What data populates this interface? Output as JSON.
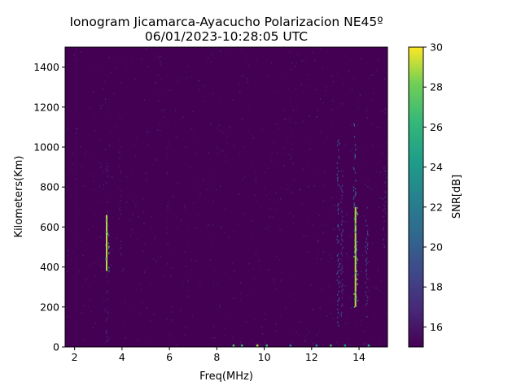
{
  "chart_data": {
    "type": "heatmap",
    "title_line1": "Ionogram Jicamarca-Ayacucho Polarizacion NE45º",
    "title_line2": "06/01/2023-10:28:05 UTC",
    "xlabel": "Freq(MHz)",
    "ylabel": "Kilometers(Km)",
    "xlim": [
      1.6,
      15.2
    ],
    "ylim": [
      0,
      1500
    ],
    "xticks": [
      2,
      4,
      6,
      8,
      10,
      12,
      14
    ],
    "yticks": [
      0,
      200,
      400,
      600,
      800,
      1000,
      1200,
      1400
    ],
    "colorbar": {
      "label": "SNR[dB]",
      "range": [
        15,
        30
      ],
      "ticks": [
        16,
        18,
        20,
        22,
        24,
        26,
        28,
        30
      ],
      "colormap": "viridis"
    },
    "colors": {
      "background": "#440154",
      "low": "#482878",
      "mid": "#21918c",
      "high_green": "#5ec962",
      "peak": "#fde725"
    },
    "echo_traces": [
      {
        "freq": 3.35,
        "h_start": 380,
        "h_end": 660,
        "snr": 29
      },
      {
        "freq": 3.35,
        "h_start": 20,
        "h_end": 380,
        "snr": 18
      },
      {
        "freq": 3.35,
        "h_start": 660,
        "h_end": 940,
        "snr": 17
      },
      {
        "freq": 3.9,
        "h_start": 450,
        "h_end": 1060,
        "snr": 17
      },
      {
        "freq": 5.9,
        "h_start": 400,
        "h_end": 1030,
        "snr": 16.5
      },
      {
        "freq": 7.85,
        "h_start": 250,
        "h_end": 880,
        "snr": 16
      },
      {
        "freq": 13.1,
        "h_start": 100,
        "h_end": 1070,
        "snr": 21
      },
      {
        "freq": 13.25,
        "h_start": 150,
        "h_end": 900,
        "snr": 19
      },
      {
        "freq": 13.85,
        "h_start": 200,
        "h_end": 700,
        "snr": 29
      },
      {
        "freq": 13.8,
        "h_start": 700,
        "h_end": 1120,
        "snr": 22
      },
      {
        "freq": 14.3,
        "h_start": 150,
        "h_end": 700,
        "snr": 20
      },
      {
        "freq": 15.05,
        "h_start": 500,
        "h_end": 900,
        "snr": 18
      }
    ],
    "ground_echoes": [
      {
        "freq": 8.7,
        "snr": 27
      },
      {
        "freq": 9.05,
        "snr": 26
      },
      {
        "freq": 9.7,
        "snr": 29
      },
      {
        "freq": 10.1,
        "snr": 26
      },
      {
        "freq": 11.1,
        "snr": 22
      },
      {
        "freq": 12.2,
        "snr": 23
      },
      {
        "freq": 12.8,
        "snr": 26
      },
      {
        "freq": 13.4,
        "snr": 24
      },
      {
        "freq": 14.4,
        "snr": 25
      }
    ]
  }
}
